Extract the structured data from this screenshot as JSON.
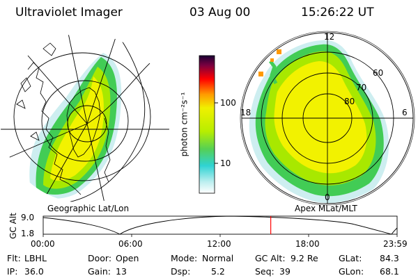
{
  "header": {
    "title": "Ultraviolet Imager",
    "date": "03 Aug 00",
    "time": "15:26:22 UT"
  },
  "colorbar": {
    "unit_label": "photon cm⁻²s⁻¹",
    "ticks": [
      "100",
      "10"
    ]
  },
  "left_map": {
    "caption": "Geographic Lat/Lon"
  },
  "right_map": {
    "caption": "Apex MLat/MLT",
    "mlt_labels": [
      "12",
      "18",
      "6",
      "0"
    ],
    "lat_labels": [
      "60",
      "70",
      "80"
    ]
  },
  "altitude_plot": {
    "ylabel": "GC Alt",
    "y_ticks": [
      "9.0",
      "1.8"
    ],
    "x_ticks": [
      "00:00",
      "06:00",
      "12:00",
      "18:00",
      "23:59"
    ],
    "current_time_fraction": 0.643
  },
  "footer": {
    "filter_label": "Flt:",
    "filter_value": "LBHL",
    "ip_label": "IP:",
    "ip_value": "36.0",
    "door_label": "Door:",
    "door_value": "Open",
    "gain_label": "Gain:",
    "gain_value": "13",
    "mode_label": "Mode:",
    "mode_value": "Normal",
    "dsp_label": "Dsp:",
    "dsp_value": "5.2",
    "gcalt_label": "GC Alt:",
    "gcalt_value": "9.2 Re",
    "seq_label": "Seq:",
    "seq_value": "39",
    "glat_label": "GLat:",
    "glat_value": "84.3",
    "glon_label": "GLon:",
    "glon_value": "68.1"
  },
  "colors": {
    "yellow": "#f2f200",
    "lime": "#a8e800",
    "green": "#36cc4a",
    "cyan": "#35d6d6",
    "orange": "#ff9a00",
    "red_marker": "#ff0000"
  }
}
